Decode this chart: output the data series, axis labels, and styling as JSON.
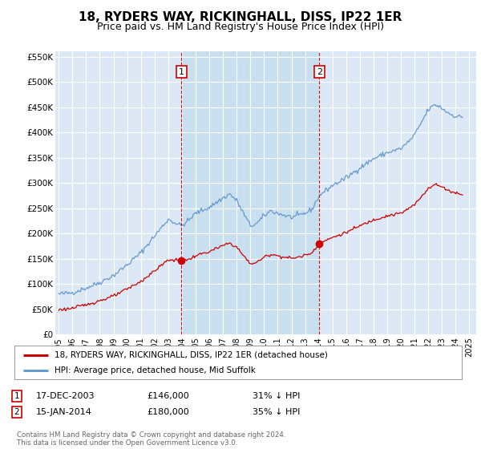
{
  "title": "18, RYDERS WAY, RICKINGHALL, DISS, IP22 1ER",
  "subtitle": "Price paid vs. HM Land Registry's House Price Index (HPI)",
  "title_fontsize": 11,
  "subtitle_fontsize": 9,
  "ylim": [
    0,
    560000
  ],
  "yticks": [
    0,
    50000,
    100000,
    150000,
    200000,
    250000,
    300000,
    350000,
    400000,
    450000,
    500000,
    550000
  ],
  "ytick_labels": [
    "£0",
    "£50K",
    "£100K",
    "£150K",
    "£200K",
    "£250K",
    "£300K",
    "£350K",
    "£400K",
    "£450K",
    "£500K",
    "£550K"
  ],
  "background_color": "#ffffff",
  "plot_bg_color": "#dce8f5",
  "grid_color": "#ffffff",
  "shade_color": "#c8dff0",
  "transaction1_x": 2003.96,
  "transaction1_y": 146000,
  "transaction1_label": "1",
  "transaction2_x": 2014.04,
  "transaction2_y": 180000,
  "transaction2_label": "2",
  "legend_line1": "18, RYDERS WAY, RICKINGHALL, DISS, IP22 1ER (detached house)",
  "legend_line2": "HPI: Average price, detached house, Mid Suffolk",
  "sale1_date": "17-DEC-2003",
  "sale1_price": "£146,000",
  "sale1_pct": "31% ↓ HPI",
  "sale2_date": "15-JAN-2014",
  "sale2_price": "£180,000",
  "sale2_pct": "35% ↓ HPI",
  "footer": "Contains HM Land Registry data © Crown copyright and database right 2024.\nThis data is licensed under the Open Government Licence v3.0.",
  "red_color": "#cc0000",
  "blue_color": "#6699cc",
  "xlim_left": 1994.75,
  "xlim_right": 2025.5
}
